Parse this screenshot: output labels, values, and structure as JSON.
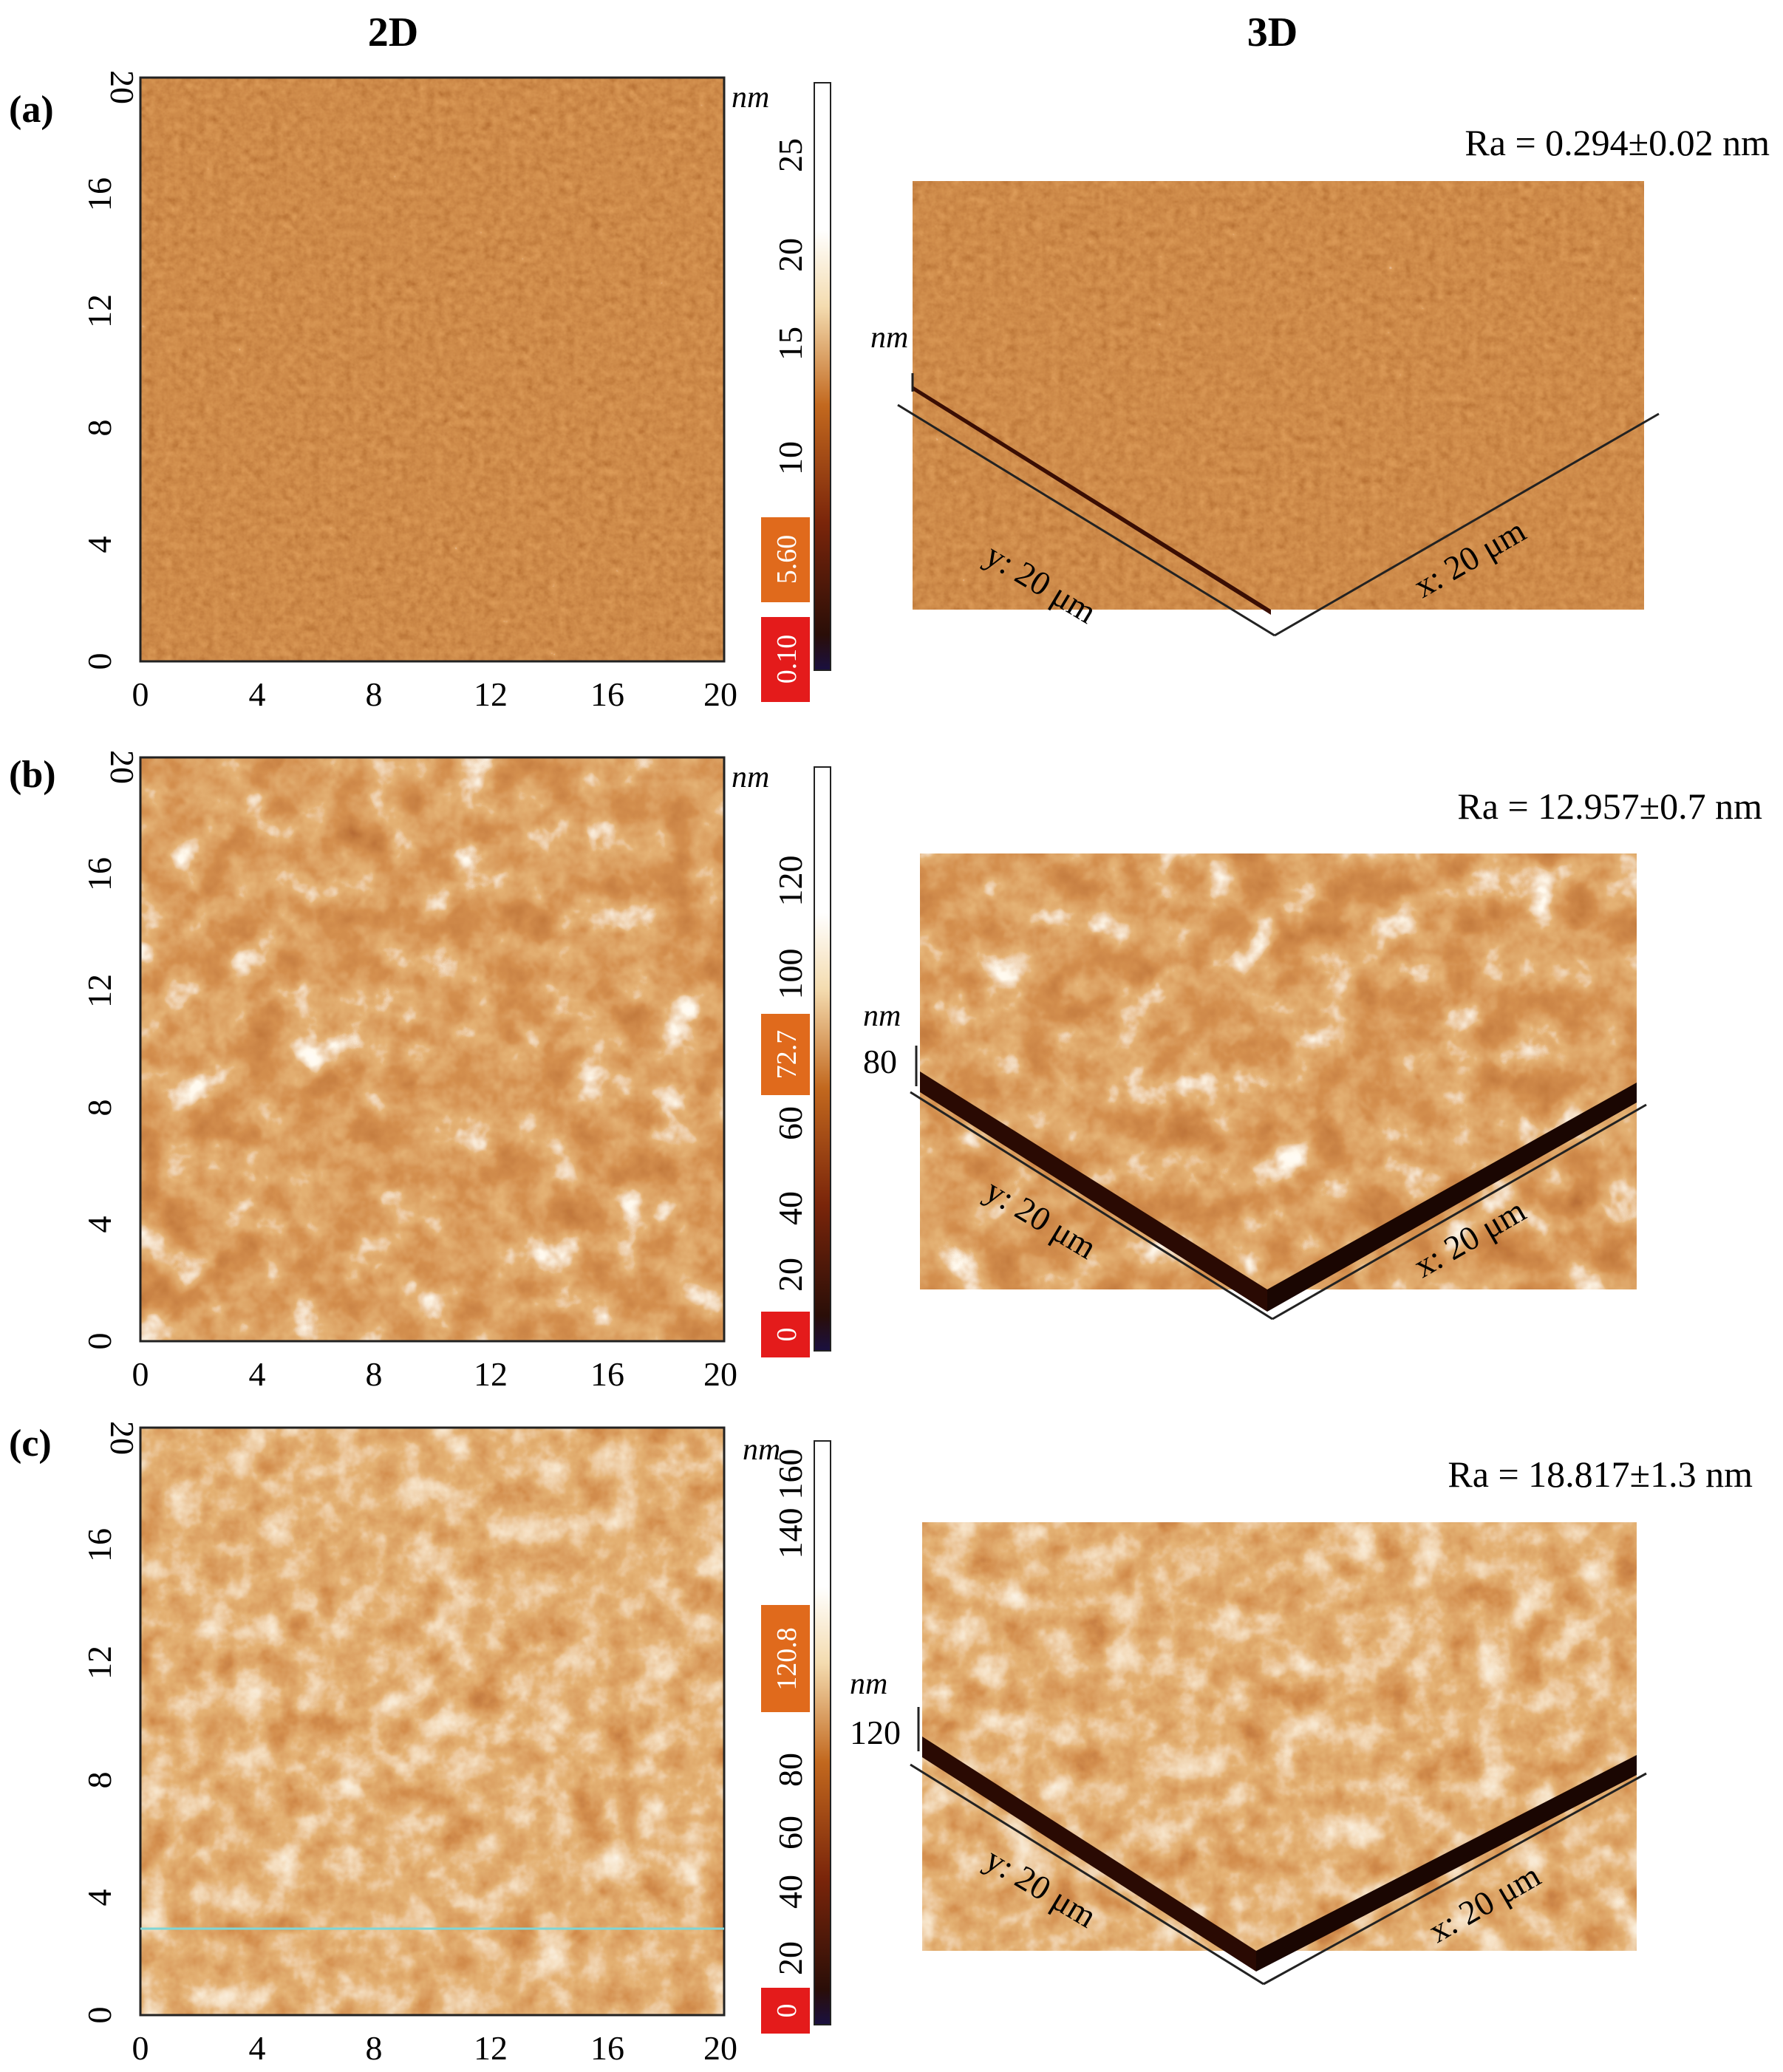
{
  "headers": {
    "col_2d": "2D",
    "col_3d": "3D"
  },
  "panels": [
    {
      "label": "(a)",
      "ra": "Ra = 0.294±0.02 nm",
      "x_ticks": [
        "0",
        "4",
        "8",
        "12",
        "16",
        "20"
      ],
      "y_ticks": [
        "0",
        "4",
        "8",
        "12",
        "16",
        "20"
      ],
      "scale_unit": "nm",
      "scale_ticks": [
        "10",
        "15",
        "20",
        "25"
      ],
      "badge_hi": "5.60",
      "badge_lo": "0.10",
      "z_unit": "nm",
      "z_value": "",
      "axis_y": "y: 20 μm",
      "axis_x": "x: 20 μm",
      "texture": "fine"
    },
    {
      "label": "(b)",
      "ra": "Ra = 12.957±0.7 nm",
      "x_ticks": [
        "0",
        "4",
        "8",
        "12",
        "16",
        "20"
      ],
      "y_ticks": [
        "0",
        "4",
        "8",
        "12",
        "16",
        "20"
      ],
      "scale_unit": "nm",
      "scale_ticks": [
        "20",
        "40",
        "60",
        "100",
        "120"
      ],
      "badge_hi": "72.7",
      "badge_lo": "0",
      "z_unit": "nm",
      "z_value": "80",
      "axis_y": "y: 20 μm",
      "axis_x": "x: 20 μm",
      "texture": "coarse"
    },
    {
      "label": "(c)",
      "ra": "Ra = 18.817±1.3 nm",
      "x_ticks": [
        "0",
        "4",
        "8",
        "12",
        "16",
        "20"
      ],
      "y_ticks": [
        "0",
        "4",
        "8",
        "12",
        "16",
        "20"
      ],
      "scale_unit": "nm",
      "scale_ticks": [
        "20",
        "40",
        "60",
        "80",
        "140",
        "160"
      ],
      "badge_hi": "120.8",
      "badge_lo": "0",
      "z_unit": "nm",
      "z_value": "120",
      "axis_y": "y: 20 μm",
      "axis_x": "x: 20 μm",
      "texture": "rough"
    }
  ],
  "colors": {
    "afm_dark": "#5a1a06",
    "afm_mid": "#9c3d0c",
    "afm_light": "#f5dcaa",
    "badge_orange": "#e06a1c",
    "badge_red": "#e41b1b"
  }
}
